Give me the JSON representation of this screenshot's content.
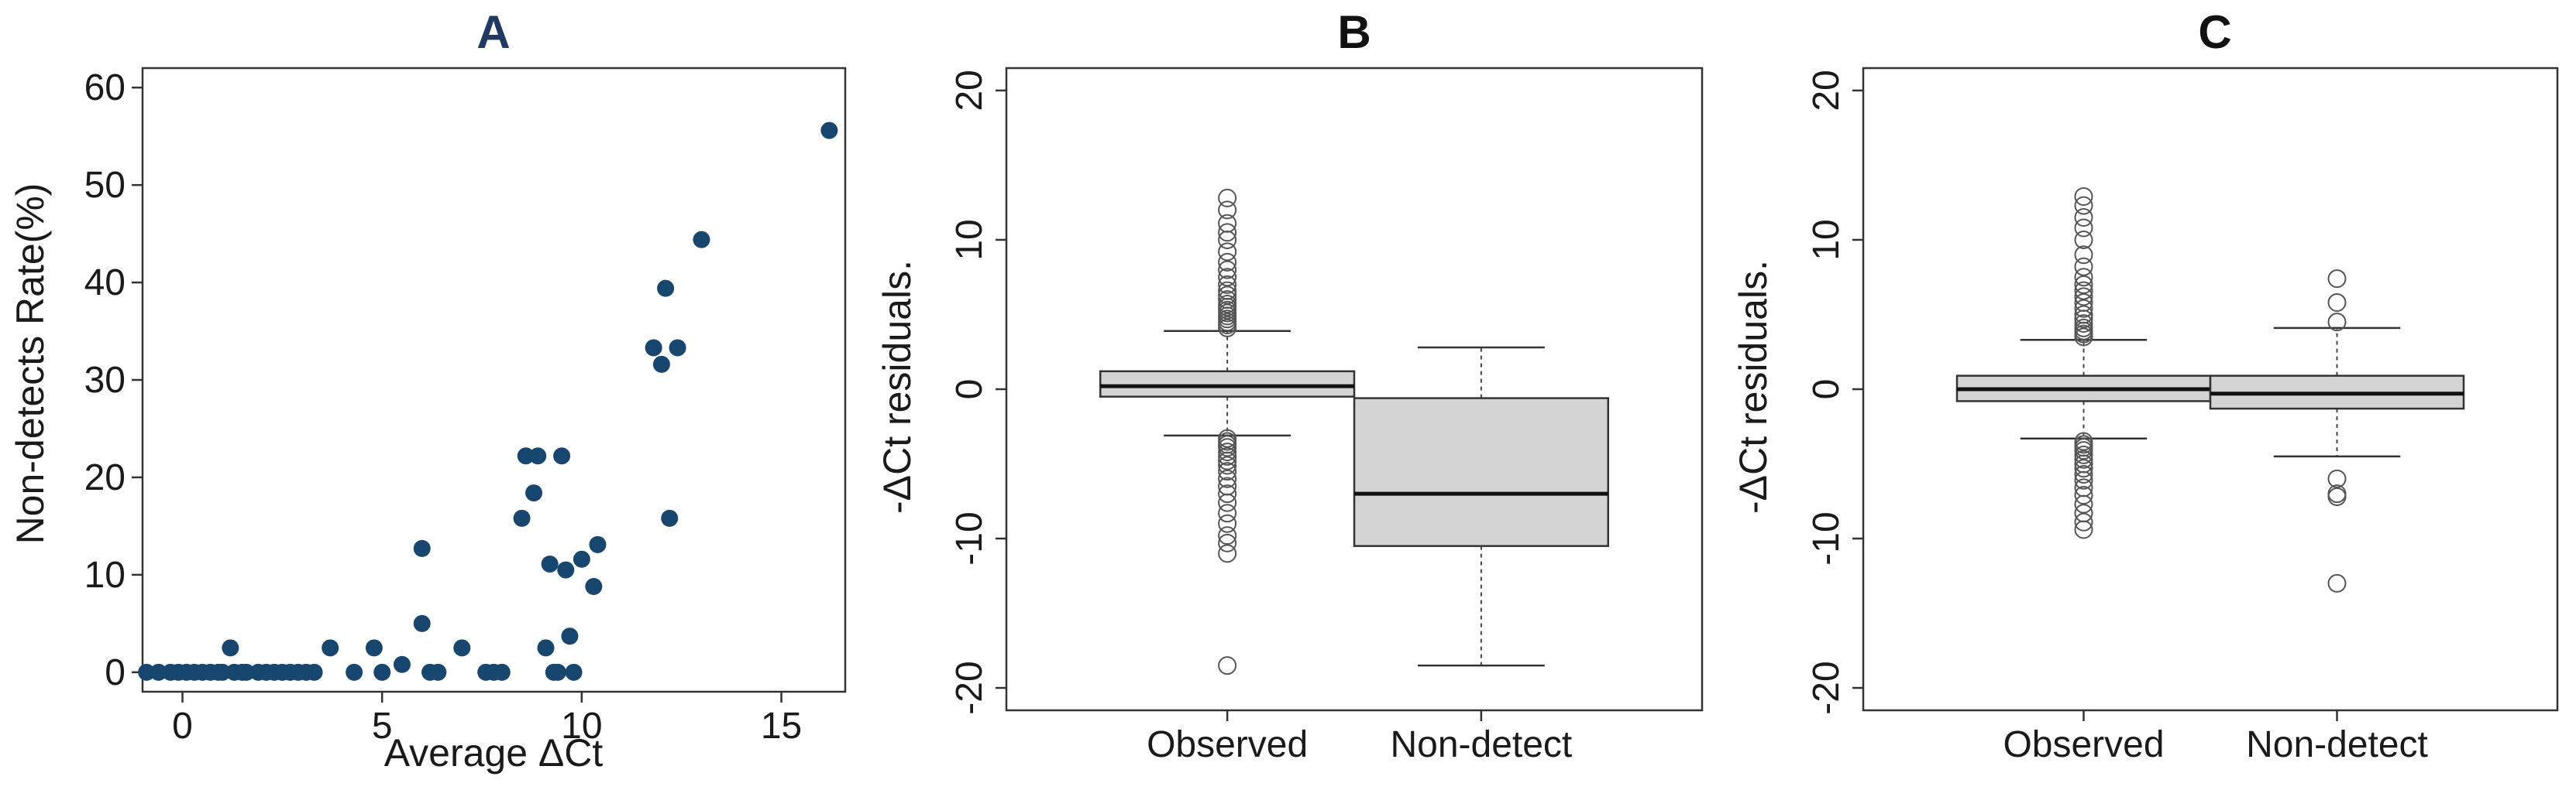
{
  "colors": {
    "scatter_point": "#17466e",
    "title_a": "#1f3864",
    "title_bc": "#111111",
    "box_fill": "#d4d4d4",
    "axis": "#333333"
  },
  "chart_data": [
    {
      "type": "scatter",
      "title": "A",
      "xlabel": "Average ΔCt",
      "ylabel": "Non-detects Rate(%)",
      "xlim": [
        -1.0,
        16.6
      ],
      "ylim": [
        -2,
        62
      ],
      "xticks": [
        "0",
        "5",
        "10",
        "15"
      ],
      "yticks": [
        "0",
        "10",
        "20",
        "30",
        "40",
        "50",
        "60"
      ],
      "grid": false,
      "points": [
        [
          -0.9,
          0
        ],
        [
          -0.6,
          0
        ],
        [
          -0.3,
          0
        ],
        [
          -0.1,
          0
        ],
        [
          0.1,
          0
        ],
        [
          0.3,
          0
        ],
        [
          0.5,
          0
        ],
        [
          0.7,
          0
        ],
        [
          0.9,
          0
        ],
        [
          1.0,
          0
        ],
        [
          1.2,
          2.5
        ],
        [
          1.3,
          0
        ],
        [
          1.5,
          0
        ],
        [
          1.6,
          0
        ],
        [
          1.9,
          0
        ],
        [
          2.1,
          0
        ],
        [
          2.3,
          0
        ],
        [
          2.5,
          0
        ],
        [
          2.7,
          0
        ],
        [
          2.9,
          0
        ],
        [
          3.1,
          0
        ],
        [
          3.3,
          0
        ],
        [
          3.7,
          2.5
        ],
        [
          4.3,
          0
        ],
        [
          4.8,
          2.5
        ],
        [
          5.0,
          0
        ],
        [
          5.5,
          0.8
        ],
        [
          6.0,
          5.0
        ],
        [
          6.0,
          12.7
        ],
        [
          6.2,
          0
        ],
        [
          6.4,
          0
        ],
        [
          7.0,
          2.5
        ],
        [
          7.6,
          0
        ],
        [
          7.8,
          0
        ],
        [
          8.0,
          0
        ],
        [
          8.5,
          15.8
        ],
        [
          8.6,
          22.2
        ],
        [
          8.8,
          18.4
        ],
        [
          8.9,
          22.2
        ],
        [
          9.1,
          2.5
        ],
        [
          9.2,
          11.1
        ],
        [
          9.3,
          0
        ],
        [
          9.4,
          0
        ],
        [
          9.5,
          22.2
        ],
        [
          9.6,
          10.5
        ],
        [
          9.7,
          3.7
        ],
        [
          9.8,
          0
        ],
        [
          10.0,
          11.6
        ],
        [
          10.3,
          8.8
        ],
        [
          10.4,
          13.1
        ],
        [
          11.8,
          33.3
        ],
        [
          12.0,
          31.6
        ],
        [
          12.1,
          39.4
        ],
        [
          12.2,
          15.8
        ],
        [
          12.4,
          33.3
        ],
        [
          13.0,
          44.4
        ],
        [
          16.2,
          55.6
        ]
      ]
    },
    {
      "type": "box",
      "title": "B",
      "ylabel": "-ΔCt residuals.",
      "ylim": [
        -21.5,
        21.5
      ],
      "yticks": [
        "-20",
        "-10",
        "0",
        "10",
        "20"
      ],
      "categories": [
        "Observed",
        "Non-detect"
      ],
      "boxes": [
        {
          "name": "Observed",
          "whisker_low": -3.1,
          "q1": -0.5,
          "median": 0.2,
          "q3": 1.2,
          "whisker_high": 3.9,
          "outliers": [
            4.1,
            4.3,
            4.5,
            4.7,
            4.9,
            5.1,
            5.3,
            5.5,
            5.7,
            6.0,
            6.3,
            6.6,
            7.0,
            7.5,
            8.0,
            8.5,
            9.2,
            10.0,
            10.5,
            11.1,
            12.0,
            12.8,
            -3.3,
            -3.5,
            -3.7,
            -3.9,
            -4.2,
            -4.5,
            -4.8,
            -5.1,
            -5.5,
            -6.0,
            -6.5,
            -7.0,
            -7.6,
            -8.3,
            -9.0,
            -9.8,
            -10.3,
            -11.0,
            -18.5
          ]
        },
        {
          "name": "Non-detect",
          "whisker_low": -18.5,
          "q1": -10.5,
          "median": -7.0,
          "q3": -0.6,
          "whisker_high": 2.8,
          "outliers": []
        }
      ]
    },
    {
      "type": "box",
      "title": "C",
      "ylabel": "-ΔCt residuals.",
      "ylim": [
        -21.5,
        21.5
      ],
      "yticks": [
        "-20",
        "-10",
        "0",
        "10",
        "20"
      ],
      "categories": [
        "Observed",
        "Non-detect"
      ],
      "boxes": [
        {
          "name": "Observed",
          "whisker_low": -3.3,
          "q1": -0.8,
          "median": 0.0,
          "q3": 0.9,
          "whisker_high": 3.3,
          "outliers": [
            3.5,
            3.7,
            3.9,
            4.1,
            4.4,
            4.7,
            5.0,
            5.4,
            5.8,
            6.2,
            6.6,
            7.0,
            7.5,
            8.2,
            9.0,
            10.0,
            10.8,
            11.5,
            12.3,
            12.9,
            -3.5,
            -3.7,
            -3.9,
            -4.1,
            -4.4,
            -4.7,
            -5.0,
            -5.3,
            -5.7,
            -6.1,
            -6.6,
            -7.1,
            -7.7,
            -8.3,
            -8.9,
            -9.4
          ]
        },
        {
          "name": "Non-detect",
          "whisker_low": -4.5,
          "q1": -1.3,
          "median": -0.3,
          "q3": 0.9,
          "whisker_high": 4.1,
          "outliers": [
            4.5,
            5.8,
            7.4,
            -6.0,
            -7.0,
            -7.2,
            -13.0
          ]
        }
      ]
    }
  ]
}
